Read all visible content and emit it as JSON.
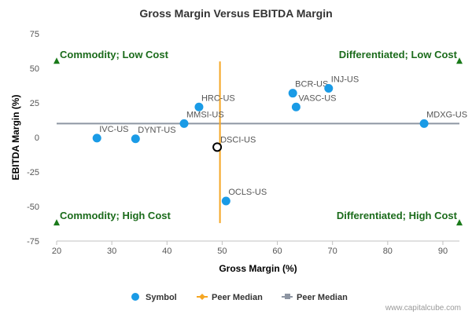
{
  "chart_data": {
    "type": "scatter",
    "title": "Gross Margin Versus EBITDA Margin",
    "xlabel": "Gross Margin (%)",
    "ylabel": "EBITDA Margin (%)",
    "xlim": [
      20,
      93
    ],
    "ylim": [
      -75,
      75
    ],
    "x_ticks": [
      20,
      30,
      40,
      50,
      60,
      70,
      80,
      90
    ],
    "y_ticks": [
      75,
      50,
      25,
      0,
      -25,
      -50,
      -75
    ],
    "points": [
      {
        "label": "IVC-US",
        "x": 27.3,
        "y": -0.5
      },
      {
        "label": "DYNT-US",
        "x": 34.3,
        "y": -1.0
      },
      {
        "label": "MMSI-US",
        "x": 43.1,
        "y": 10.0
      },
      {
        "label": "HRC-US",
        "x": 45.8,
        "y": 22.0
      },
      {
        "label": "BCR-US",
        "x": 62.8,
        "y": 32.0
      },
      {
        "label": "INJ-US",
        "x": 69.3,
        "y": 35.5
      },
      {
        "label": "VASC-US",
        "x": 63.4,
        "y": 22.0
      },
      {
        "label": "MDXG-US",
        "x": 86.6,
        "y": 10.0
      },
      {
        "label": "OCLS-US",
        "x": 50.7,
        "y": -46.0
      }
    ],
    "highlight_point": {
      "label": "DSCI-US",
      "x": 49.1,
      "y": -7.0
    },
    "peer_median_x": 49.6,
    "peer_median_y": 10.0,
    "median_v_range": [
      -62,
      55
    ],
    "median_h_range": [
      20,
      93
    ],
    "quadrants": {
      "top_left": "Commodity; Low Cost",
      "top_right": "Differentiated; Low Cost",
      "bottom_left": "Commodity; High Cost",
      "bottom_right": "Differentiated; High Cost"
    },
    "quadrant_markers": [
      {
        "x": 20,
        "y": 55
      },
      {
        "x": 93,
        "y": 55
      },
      {
        "x": 20,
        "y": -62
      },
      {
        "x": 93,
        "y": -62
      }
    ],
    "legend": [
      {
        "label": "Symbol",
        "kind": "dot"
      },
      {
        "label": "Peer Median",
        "kind": "orange-line"
      },
      {
        "label": "Peer Median",
        "kind": "gray-line"
      }
    ],
    "legend_position": "bottom",
    "watermark": "www.capitalcube.com",
    "colors": {
      "point": "#1a9be6",
      "median_v": "#f5a623",
      "median_h": "#8e96a3",
      "quadrant_text": "#1b6b1b",
      "marker": "#1a7a1a",
      "axis": "#c0c0c0"
    }
  }
}
